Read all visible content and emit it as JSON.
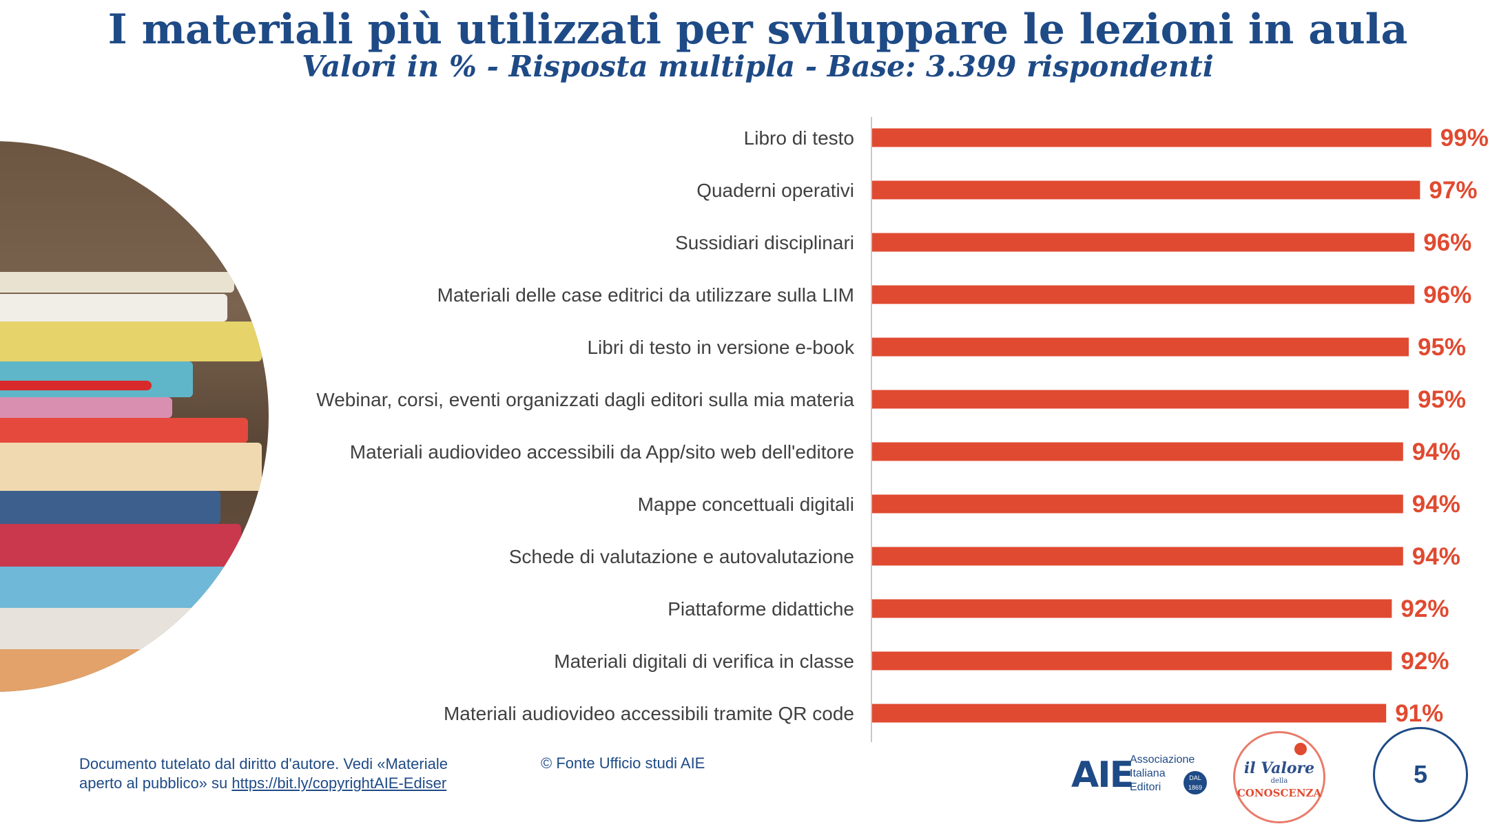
{
  "header": {
    "title": "I materiali più utilizzati per sviluppare le lezioni in aula",
    "subtitle": "Valori in % - Risposta multipla - Base: 3.399 rispondenti"
  },
  "chart_data": {
    "type": "bar",
    "orientation": "horizontal",
    "title": "I materiali più utilizzati per sviluppare le lezioni in aula",
    "subtitle": "Valori in % - Risposta multipla - Base: 3.399 rispondenti",
    "categories": [
      "Libro di testo",
      "Quaderni operativi",
      "Sussidiari disciplinari",
      "Materiali delle case editrici da utilizzare sulla LIM",
      "Libri di testo in versione e-book",
      "Webinar, corsi, eventi organizzati dagli editori sulla mia materia",
      "Materiali audiovideo accessibili da App/sito web dell'editore",
      "Mappe concettuali digitali",
      "Schede di valutazione e autovalutazione",
      "Piattaforme didattiche",
      "Materiali digitali di verifica in classe",
      "Materiali audiovideo accessibili tramite QR code"
    ],
    "values": [
      99,
      97,
      96,
      96,
      95,
      95,
      94,
      94,
      94,
      92,
      92,
      91
    ],
    "value_labels": [
      "99%",
      "97%",
      "96%",
      "96%",
      "95%",
      "95%",
      "94%",
      "94%",
      "94%",
      "92%",
      "92%",
      "91%"
    ],
    "unit": "%",
    "bar_color": "#e04a30",
    "label_color": "#e04a30",
    "grid": false,
    "legend": "none"
  },
  "footer": {
    "copyright_line1": "Documento tutelato dal diritto d'autore. Vedi «Materiale",
    "copyright_line2_prefix": "aperto al pubblico» su ",
    "copyright_link": "https://bit.ly/copyrightAIE-Ediser",
    "source": "© Fonte Ufficio studi AIE"
  },
  "logos": {
    "aie_mark": "AIE",
    "aie_line1": "Associazione",
    "aie_line2": "Italiana",
    "aie_line3": "Editori",
    "aie_badge_1": "DAL",
    "aie_badge_2": "1869",
    "valore_1": "il Valore",
    "valore_2": "della",
    "valore_3": "CONOSCENZA"
  },
  "page_number": "5",
  "colors": {
    "title": "#1e4a86",
    "bar": "#e04a30",
    "axis": "#c8c8c8"
  }
}
